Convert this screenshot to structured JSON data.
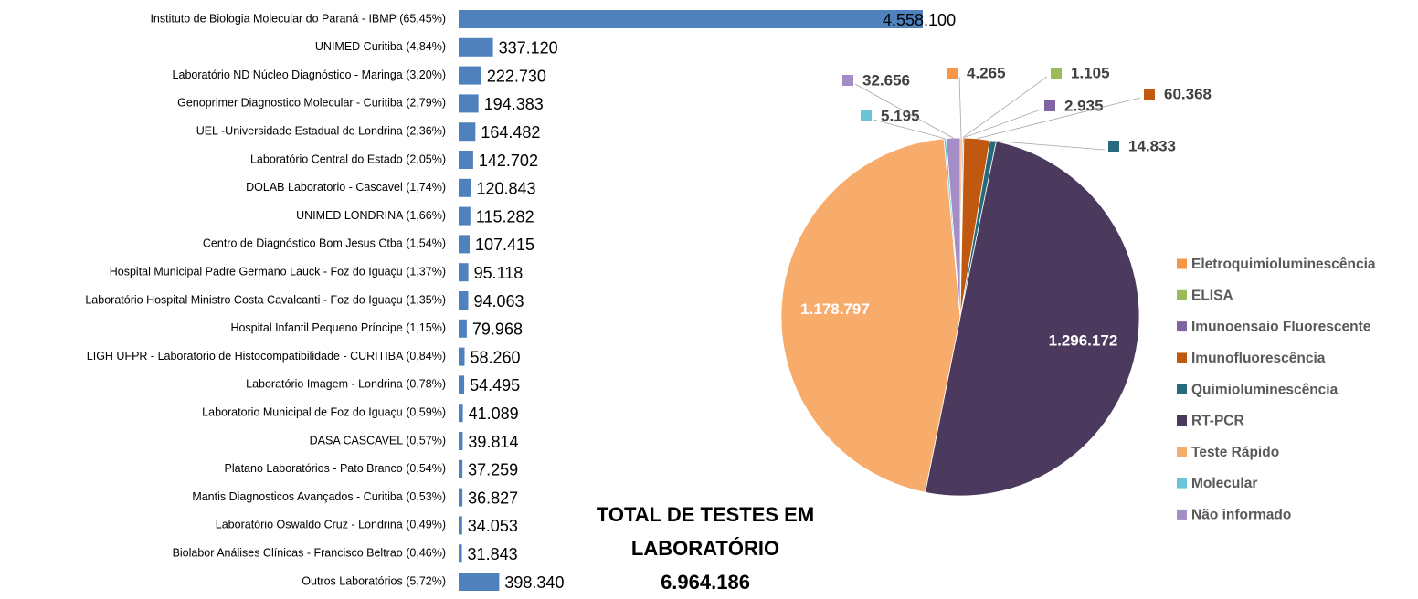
{
  "chart_data": [
    {
      "type": "hbar",
      "color": "#4f81bd",
      "categories": [
        "Instituto de Biologia Molecular do Paraná - IBMP (65,45%)",
        "UNIMED Curitiba (4,84%)",
        "Laboratório ND Núcleo Diagnóstico - Maringa (3,20%)",
        "Genoprimer Diagnostico Molecular - Curitiba (2,79%)",
        "UEL -Universidade Estadual de Londrina (2,36%)",
        "Laboratório Central do Estado (2,05%)",
        "DOLAB Laboratorio - Cascavel (1,74%)",
        "UNIMED LONDRINA (1,66%)",
        "Centro de Diagnóstico Bom Jesus Ctba (1,54%)",
        "Hospital Municipal Padre Germano Lauck - Foz do Iguaçu (1,37%)",
        "Laboratório Hospital Ministro Costa Cavalcanti - Foz do Iguaçu (1,35%)",
        "Hospital Infantil Pequeno Príncipe (1,15%)",
        "LIGH UFPR - Laboratorio de Histocompatibilidade - CURITIBA (0,84%)",
        "Laboratório Imagem - Londrina (0,78%)",
        "Laboratorio Municipal de Foz do Iguaçu   (0,59%)",
        "DASA CASCAVEL (0,57%)",
        "Platano Laboratórios - Pato Branco (0,54%)",
        "Mantis Diagnosticos Avançados - Curitiba (0,53%)",
        "Laboratório Oswaldo Cruz - Londrina (0,49%)",
        "Biolabor Análises Clínicas - Francisco Beltrao (0,46%)",
        "Outros Laboratórios (5,72%)"
      ],
      "values": [
        4558100,
        337120,
        222730,
        194383,
        164482,
        142702,
        120843,
        115282,
        107415,
        95118,
        94063,
        79968,
        58260,
        54495,
        41089,
        39814,
        37259,
        36827,
        34053,
        31843,
        398340
      ],
      "value_labels": [
        "4.558.100",
        "337.120",
        "222.730",
        "194.383",
        "164.482",
        "142.702",
        "120.843",
        "115.282",
        "107.415",
        "95.118",
        "94.063",
        "79.968",
        "58.260",
        "54.495",
        "41.089",
        "39.814",
        "37.259",
        "36.827",
        "34.053",
        "31.843",
        "398.340"
      ]
    },
    {
      "type": "pie",
      "legend": "right",
      "series": [
        {
          "name": "Eletroquimioluminescência",
          "color": "#f79646",
          "values": [
            4265
          ],
          "value_labels": [
            "4.265"
          ]
        },
        {
          "name": "ELISA",
          "color": "#9bbb59",
          "values": [
            1105
          ],
          "value_labels": [
            "1.105"
          ]
        },
        {
          "name": "Imunoensaio Fluorescente",
          "color": "#8064a2",
          "values": [
            2935
          ],
          "value_labels": [
            "2.935"
          ]
        },
        {
          "name": "Imunofluorescência",
          "color": "#c0590f",
          "values": [
            60368
          ],
          "value_labels": [
            "60.368"
          ]
        },
        {
          "name": "Quimioluminescência",
          "color": "#276a7c",
          "values": [
            14833
          ],
          "value_labels": [
            "14.833"
          ]
        },
        {
          "name": "RT-PCR",
          "color": "#4b3a5e",
          "values": [
            1296172
          ],
          "value_labels": [
            "1.296.172"
          ]
        },
        {
          "name": "Teste Rápido",
          "color": "#f8ac6b",
          "values": [
            1178797
          ],
          "value_labels": [
            "1.178.797"
          ]
        },
        {
          "name": "Molecular",
          "color": "#6cc4d8",
          "values": [
            5195
          ],
          "value_labels": [
            "5.195"
          ]
        },
        {
          "name": "Não informado",
          "color": "#a48cc4",
          "values": [
            32656
          ],
          "value_labels": [
            "32.656"
          ]
        }
      ]
    }
  ],
  "total": {
    "title": "TOTAL DE TESTES EM LABORATÓRIO",
    "value": 6964186,
    "value_label": "6.964.186"
  }
}
